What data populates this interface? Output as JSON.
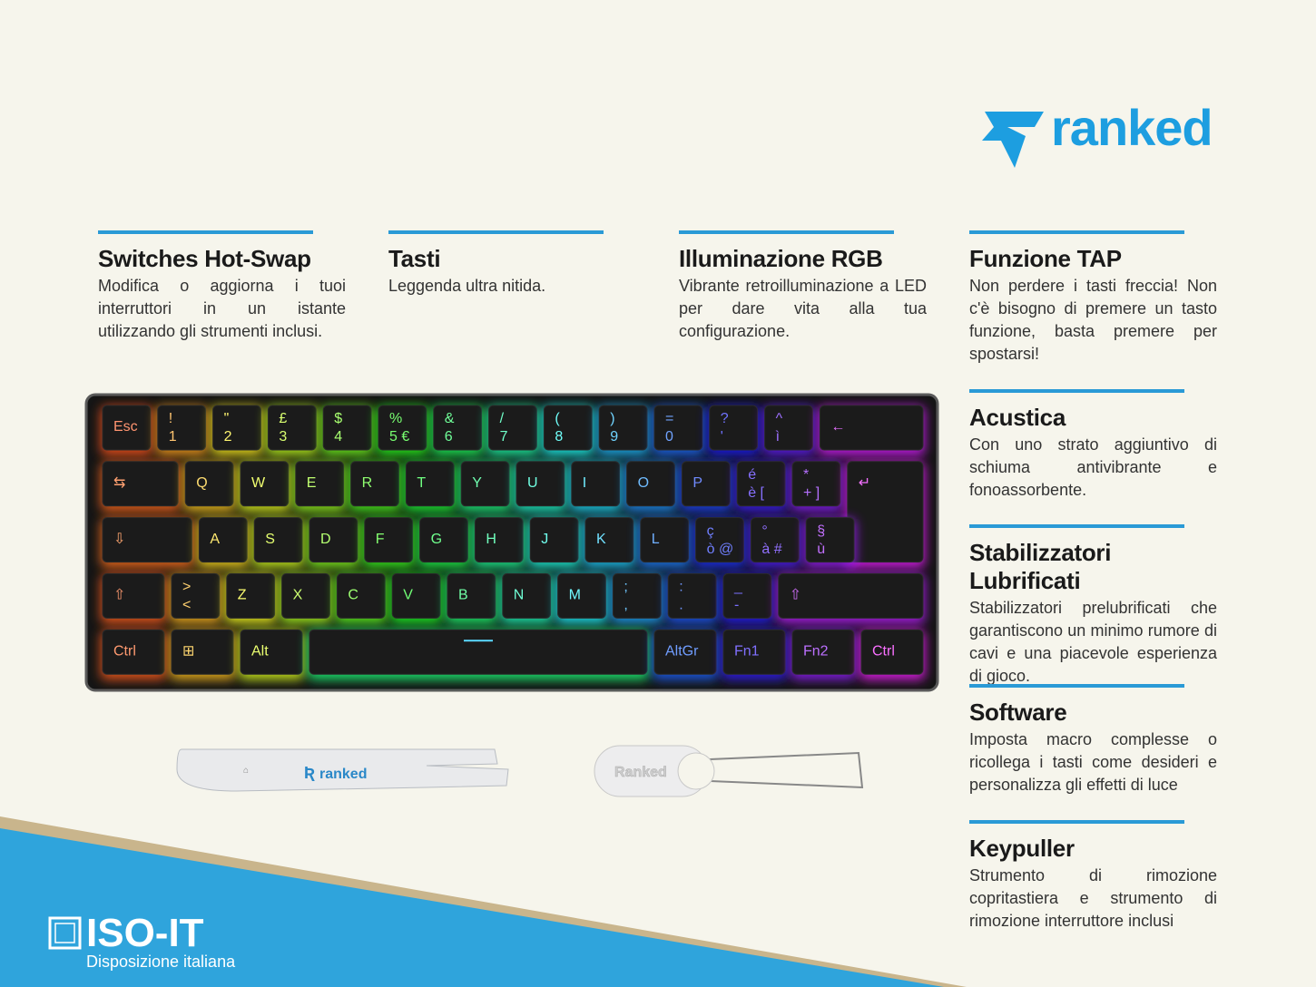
{
  "logo": "ranked",
  "features": [
    {
      "title": "Switches Hot-Swap",
      "body": "Modifica o aggiorna i tuoi interruttori in un istante utilizzando gli strumenti inclusi."
    },
    {
      "title": "Tasti",
      "body": "Leggenda ultra nitida."
    },
    {
      "title": "Illuminazione RGB",
      "body": "Vibrante retroilluminazione a LED per dare vita alla tua configurazione."
    },
    {
      "title": "Funzione TAP",
      "body": "Non perdere i tasti freccia! Non c'è bisogno di premere un tasto funzione, basta premere per spostarsi!"
    },
    {
      "title": "Acustica",
      "body": "Con uno strato aggiuntivo di schiuma antivibrante e fonoassorbente."
    },
    {
      "title": "Stabilizzatori Lubrificati",
      "body": "Stabilizzatori prelubrificati che garantiscono un minimo rumore di cavi e una piacevole esperienza di gioco."
    },
    {
      "title": "Software",
      "body": "Imposta macro complesse o ricollega i tasti come desideri e personalizza gli effetti di luce"
    },
    {
      "title": "Keypuller",
      "body": "Strumento di rimozione copritastiera e strumento di rimozione interruttore inclusi"
    }
  ],
  "keyboard": {
    "rows": [
      [
        [
          "Esc"
        ],
        [
          "!",
          "1"
        ],
        [
          "\"",
          "2"
        ],
        [
          "£",
          "3"
        ],
        [
          "$",
          "4"
        ],
        [
          "%",
          "5 €"
        ],
        [
          "&",
          "6"
        ],
        [
          "/",
          "7"
        ],
        [
          "(",
          "8"
        ],
        [
          ")",
          "9"
        ],
        [
          "=",
          "0"
        ],
        [
          "?",
          "'"
        ],
        [
          "^",
          "ì"
        ],
        [
          "←"
        ]
      ],
      [
        [
          "⇆"
        ],
        [
          "Q"
        ],
        [
          "W"
        ],
        [
          "E"
        ],
        [
          "R"
        ],
        [
          "T"
        ],
        [
          "Y"
        ],
        [
          "U"
        ],
        [
          "I"
        ],
        [
          "O"
        ],
        [
          "P"
        ],
        [
          "é",
          "è ["
        ],
        [
          "*",
          "+ ]"
        ],
        [
          "↵"
        ]
      ],
      [
        [
          "⇩"
        ],
        [
          "A"
        ],
        [
          "S"
        ],
        [
          "D"
        ],
        [
          "F"
        ],
        [
          "G"
        ],
        [
          "H"
        ],
        [
          "J"
        ],
        [
          "K"
        ],
        [
          "L"
        ],
        [
          "ç",
          "ò @"
        ],
        [
          "°",
          "à #"
        ],
        [
          "§",
          "ù"
        ]
      ],
      [
        [
          "⇧"
        ],
        [
          ">",
          "<"
        ],
        [
          "Z"
        ],
        [
          "X"
        ],
        [
          "C"
        ],
        [
          "V"
        ],
        [
          "B"
        ],
        [
          "N"
        ],
        [
          "M"
        ],
        [
          ";",
          ","
        ],
        [
          ":",
          "."
        ],
        [
          "_",
          "-"
        ],
        [
          "⇧"
        ]
      ],
      [
        [
          "Ctrl"
        ],
        [
          "⊞"
        ],
        [
          "Alt"
        ],
        [],
        [
          "AltGr"
        ],
        [
          "Fn1"
        ],
        [
          "Fn2"
        ],
        [
          "Ctrl"
        ]
      ]
    ]
  },
  "tools": {
    "tweezer_label": "ranked",
    "keypuller_label": "Ranked"
  },
  "badge": {
    "title": "ISO-IT",
    "subtitle": "Disposizione italiana"
  }
}
